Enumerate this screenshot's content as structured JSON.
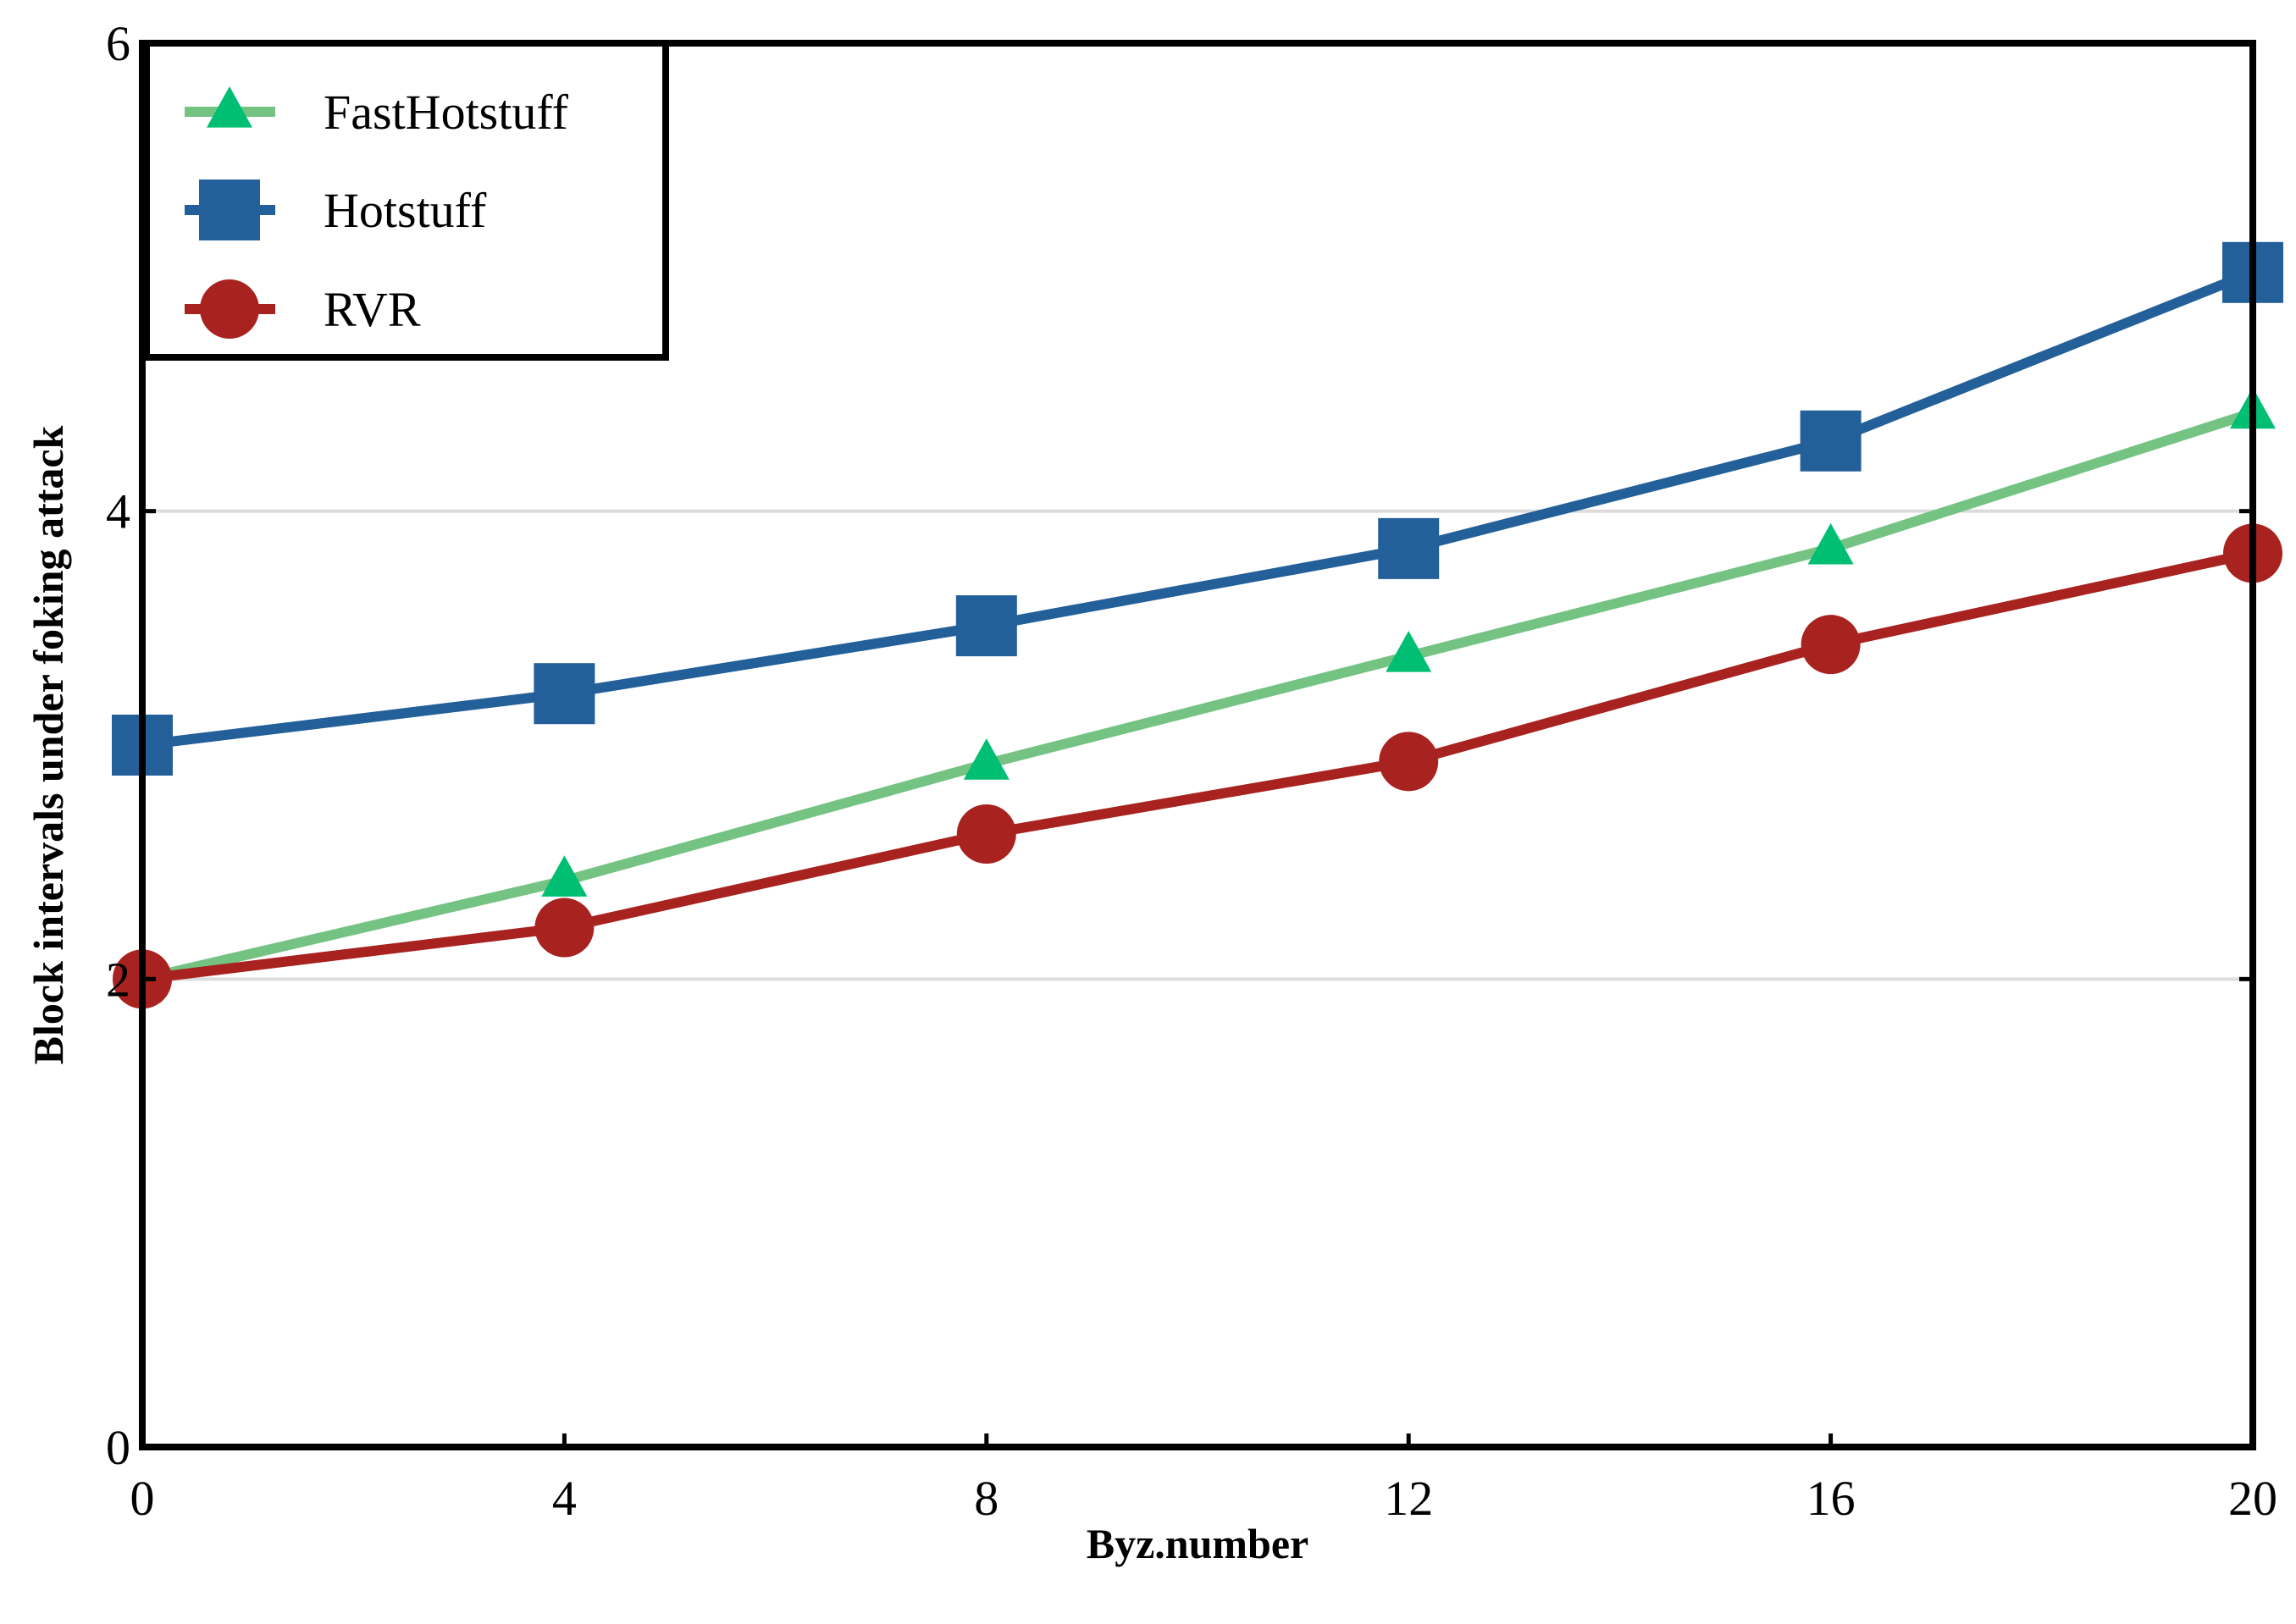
{
  "chart_data": {
    "type": "line",
    "title": "",
    "xlabel": "Byz.number",
    "ylabel": "Block intervals under foking  attack",
    "x": [
      0,
      4,
      8,
      12,
      16,
      20
    ],
    "xticks": [
      "0",
      "4",
      "8",
      "12",
      "16",
      "20"
    ],
    "yticks": [
      "0",
      "2",
      "4",
      "6"
    ],
    "xlim": [
      0,
      20
    ],
    "ylim": [
      0,
      6
    ],
    "grid": "horizontal at 2 and 4",
    "legend_position": "top-left",
    "series": [
      {
        "name": "FastHotstuff",
        "values": [
          2.0,
          2.42,
          2.92,
          3.38,
          3.84,
          4.42
        ],
        "color": "#74c383",
        "marker_color": "#00bf73",
        "marker": "triangle"
      },
      {
        "name": "Hotstuff",
        "values": [
          3.0,
          3.22,
          3.51,
          3.84,
          4.3,
          5.02
        ],
        "color": "#23609a",
        "marker_color": "#23609a",
        "marker": "square"
      },
      {
        "name": "RVR",
        "values": [
          2.0,
          2.22,
          2.62,
          2.93,
          3.43,
          3.82
        ],
        "color": "#a8231f",
        "marker_color": "#a8231f",
        "marker": "circle"
      }
    ]
  }
}
